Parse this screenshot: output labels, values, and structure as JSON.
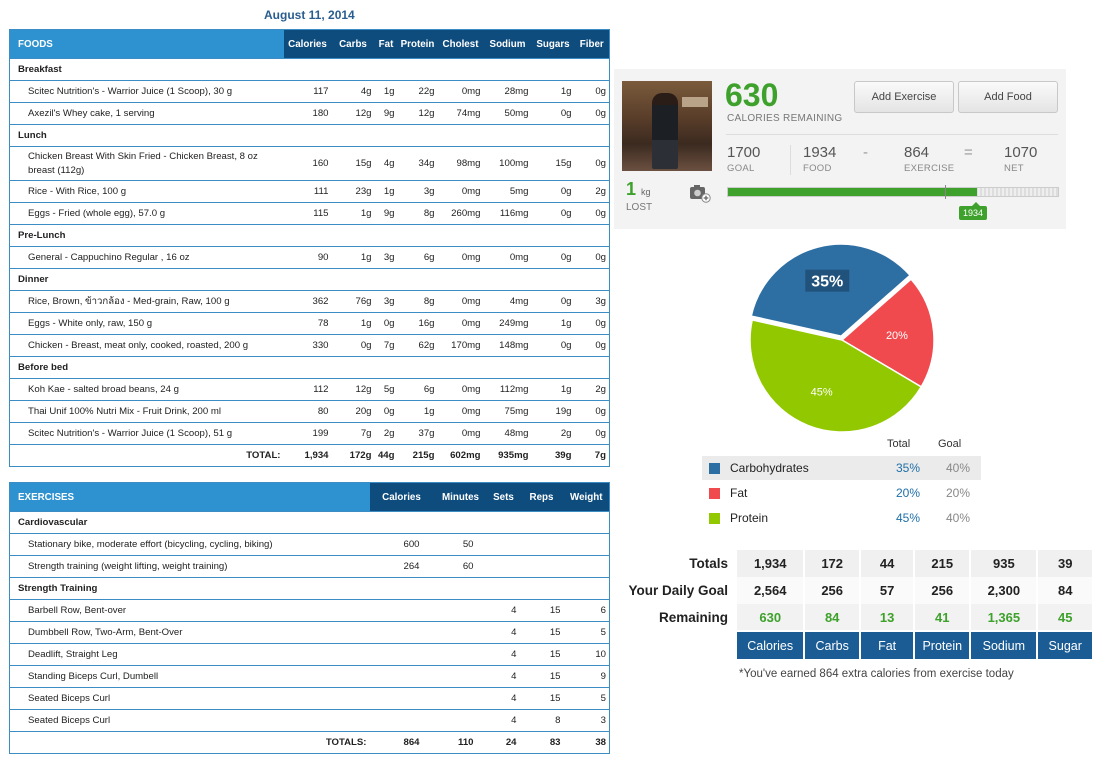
{
  "date": "August 11, 2014",
  "foods": {
    "header": [
      "FOODS",
      "Calories",
      "Carbs",
      "Fat",
      "Protein",
      "Cholest",
      "Sodium",
      "Sugars",
      "Fiber"
    ],
    "meals": [
      {
        "name": "Breakfast",
        "items": [
          {
            "name": "Scitec Nutrition's - Warrior Juice (1 Scoop), 30 g",
            "vals": [
              "117",
              "4g",
              "1g",
              "22g",
              "0mg",
              "28mg",
              "1g",
              "0g"
            ]
          },
          {
            "name": "Axezil's Whey cake, 1 serving",
            "vals": [
              "180",
              "12g",
              "9g",
              "12g",
              "74mg",
              "50mg",
              "0g",
              "0g"
            ]
          }
        ]
      },
      {
        "name": "Lunch",
        "items": [
          {
            "name": "Chicken Breast With Skin Fried - Chicken Breast, 8 oz breast (112g)",
            "vals": [
              "160",
              "15g",
              "4g",
              "34g",
              "98mg",
              "100mg",
              "15g",
              "0g"
            ],
            "tall": true
          },
          {
            "name": "Rice - With Rice, 100 g",
            "vals": [
              "111",
              "23g",
              "1g",
              "3g",
              "0mg",
              "5mg",
              "0g",
              "2g"
            ]
          },
          {
            "name": "Eggs - Fried (whole egg), 57.0 g",
            "vals": [
              "115",
              "1g",
              "9g",
              "8g",
              "260mg",
              "116mg",
              "0g",
              "0g"
            ]
          }
        ]
      },
      {
        "name": "Pre-Lunch",
        "items": [
          {
            "name": "General - Cappuchino Regular , 16 oz",
            "vals": [
              "90",
              "1g",
              "3g",
              "6g",
              "0mg",
              "0mg",
              "0g",
              "0g"
            ]
          }
        ]
      },
      {
        "name": "Dinner",
        "items": [
          {
            "name": "Rice, Brown, ข้าวกล้อง - Med-grain, Raw, 100 g",
            "vals": [
              "362",
              "76g",
              "3g",
              "8g",
              "0mg",
              "4mg",
              "0g",
              "3g"
            ]
          },
          {
            "name": "Eggs - White only, raw, 150 g",
            "vals": [
              "78",
              "1g",
              "0g",
              "16g",
              "0mg",
              "249mg",
              "1g",
              "0g"
            ]
          },
          {
            "name": "Chicken - Breast, meat only, cooked, roasted, 200 g",
            "vals": [
              "330",
              "0g",
              "7g",
              "62g",
              "170mg",
              "148mg",
              "0g",
              "0g"
            ]
          }
        ]
      },
      {
        "name": "Before bed",
        "items": [
          {
            "name": "Koh Kae - salted broad beans, 24 g",
            "vals": [
              "112",
              "12g",
              "5g",
              "6g",
              "0mg",
              "112mg",
              "1g",
              "2g"
            ]
          },
          {
            "name": "Thai Unif 100% Nutri Mix - Fruit Drink, 200 ml",
            "vals": [
              "80",
              "20g",
              "0g",
              "1g",
              "0mg",
              "75mg",
              "19g",
              "0g"
            ]
          },
          {
            "name": "Scitec Nutrition's - Warrior Juice (1 Scoop), 51 g",
            "vals": [
              "199",
              "7g",
              "2g",
              "37g",
              "0mg",
              "48mg",
              "2g",
              "0g"
            ]
          }
        ]
      }
    ],
    "total_label": "TOTAL:",
    "totals": [
      "1,934",
      "172g",
      "44g",
      "215g",
      "602mg",
      "935mg",
      "39g",
      "7g"
    ]
  },
  "exercises": {
    "header": [
      "EXERCISES",
      "Calories",
      "Minutes",
      "Sets",
      "Reps",
      "Weight"
    ],
    "groups": [
      {
        "name": "Cardiovascular",
        "items": [
          {
            "name": "Stationary bike, moderate effort (bicycling, cycling, biking)",
            "vals": [
              "600",
              "50",
              "",
              "",
              ""
            ]
          },
          {
            "name": "Strength training (weight lifting, weight training)",
            "vals": [
              "264",
              "60",
              "",
              "",
              ""
            ]
          }
        ]
      },
      {
        "name": "Strength Training",
        "items": [
          {
            "name": "Barbell Row, Bent-over",
            "vals": [
              "",
              "",
              "4",
              "15",
              "6"
            ]
          },
          {
            "name": "Dumbbell Row, Two-Arm, Bent-Over",
            "vals": [
              "",
              "",
              "4",
              "15",
              "5"
            ]
          },
          {
            "name": "Deadlift, Straight Leg",
            "vals": [
              "",
              "",
              "4",
              "15",
              "10"
            ]
          },
          {
            "name": "Standing Biceps Curl, Dumbell",
            "vals": [
              "",
              "",
              "4",
              "15",
              "9"
            ]
          },
          {
            "name": "Seated Biceps Curl",
            "vals": [
              "",
              "",
              "4",
              "15",
              "5"
            ]
          },
          {
            "name": "Seated Biceps Curl",
            "vals": [
              "",
              "",
              "4",
              "8",
              "3"
            ]
          }
        ]
      }
    ],
    "total_label": "TOTALS:",
    "totals": [
      "864",
      "110",
      "24",
      "83",
      "38"
    ]
  },
  "summary": {
    "remaining": "630",
    "remaining_label": "CALORIES REMAINING",
    "add_exercise": "Add Exercise",
    "add_food": "Add Food",
    "goal": "1700",
    "goal_label": "GOAL",
    "food": "1934",
    "food_label": "FOOD",
    "minus": "-",
    "exercise": "864",
    "exercise_label": "EXERCISE",
    "equals": "=",
    "net": "1070",
    "net_label": "NET",
    "lost_value": "1",
    "lost_unit": "kg",
    "lost_label": "LOST",
    "progress_tag": "1934",
    "progress_fraction": 0.755
  },
  "macros": {
    "total_header": "Total",
    "goal_header": "Goal",
    "items": [
      {
        "name": "Carbohydrates",
        "total": "35%",
        "goal": "40%",
        "pct": 35,
        "color": "#2e6fa3",
        "label_color": "#ffffff"
      },
      {
        "name": "Fat",
        "total": "20%",
        "goal": "20%",
        "pct": 20,
        "color": "#f04a4f",
        "label_color": "#ffffff"
      },
      {
        "name": "Protein",
        "total": "45%",
        "goal": "40%",
        "pct": 45,
        "color": "#92c800",
        "label_color": "#ffffff"
      }
    ]
  },
  "totals_table": {
    "row_labels": [
      "Totals",
      "Your Daily Goal",
      "Remaining"
    ],
    "totals": [
      "1,934",
      "172",
      "44",
      "215",
      "935",
      "39"
    ],
    "goal": [
      "2,564",
      "256",
      "57",
      "256",
      "2,300",
      "84"
    ],
    "remaining": [
      "630",
      "84",
      "13",
      "41",
      "1,365",
      "45"
    ],
    "columns": [
      "Calories",
      "Carbs",
      "Fat",
      "Protein",
      "Sodium",
      "Sugar"
    ],
    "note": "*You've earned 864 extra calories from exercise today"
  }
}
